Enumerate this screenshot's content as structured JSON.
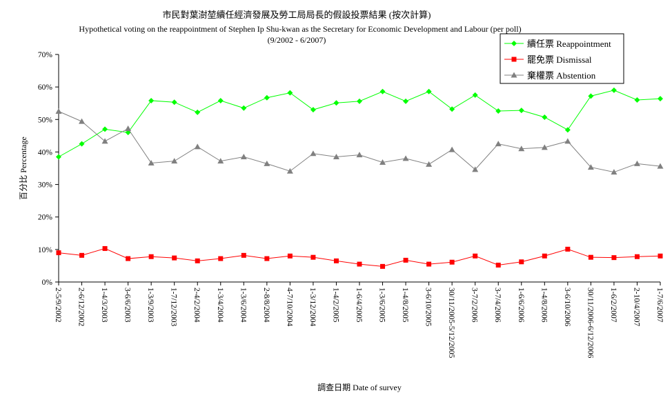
{
  "chart_data": {
    "type": "line",
    "title": "市民對葉澍堃續任經濟發展及勞工局局長的假設投票結果 (按次計算)",
    "subtitle": "Hypothetical voting on the reappointment of Stephen Ip Shu-kwan as the Secretary for Economic Development and Labour (per poll)",
    "period": "(9/2002 - 6/2007)",
    "xlabel": "調查日期 Date of survey",
    "ylabel": "百分比 Percentage",
    "ylim": [
      0,
      70
    ],
    "ytick_step": 10,
    "y_unit": "%",
    "grid": false,
    "legend_position": "top-right",
    "categories": [
      "2-5/9/2002",
      "2-6/12/2002",
      "1-4/3/2003",
      "3-6/6/2003",
      "1-3/9/2003",
      "1-7/12/2003",
      "2-4/2/2004",
      "1-3/4/2004",
      "1-3/6/2004",
      "2-8/8/2004",
      "4-7/10/2004",
      "1-3/12/2004",
      "1-4/2/2005",
      "1-6/4/2005",
      "1-3/6/2005",
      "1-4/8/2005",
      "3-6/10/2005",
      "30/11/2005-5/12/2005",
      "3-7/2/2006",
      "3-7/4/2006",
      "1-6/6/2006",
      "1-4/8/2006",
      "3-6/10/2006",
      "30/11/2006-6/12/2006",
      "1-6/2/2007",
      "2-10/4/2007",
      "1-7/6/2007"
    ],
    "series": [
      {
        "name": "續任票 Reappointment",
        "color": "#00ff00",
        "marker": "diamond",
        "values": [
          38.5,
          42.5,
          47,
          46,
          55.8,
          55.3,
          52.2,
          55.8,
          53.5,
          56.7,
          58.2,
          53,
          55.1,
          55.6,
          58.6,
          55.6,
          58.6,
          53.2,
          57.5,
          52.6,
          52.8,
          50.7,
          46.8,
          57.2,
          59,
          56,
          56.4
        ]
      },
      {
        "name": "罷免票 Dismissal",
        "color": "#ff0000",
        "marker": "square",
        "values": [
          9,
          8.2,
          10.3,
          7.2,
          7.8,
          7.4,
          6.5,
          7.2,
          8.2,
          7.2,
          8,
          7.6,
          6.5,
          5.5,
          4.8,
          6.7,
          5.5,
          6.1,
          8,
          5.2,
          6.2,
          8,
          10.1,
          7.6,
          7.5,
          7.8,
          8
        ]
      },
      {
        "name": "棄權票 Abstention",
        "color": "#808080",
        "marker": "triangle",
        "values": [
          52.5,
          49.4,
          43.3,
          47.2,
          36.6,
          37.2,
          41.6,
          37.2,
          38.5,
          36.4,
          34.1,
          39.5,
          38.5,
          39.1,
          36.8,
          38,
          36.2,
          40.7,
          34.6,
          42.5,
          41,
          41.4,
          43.3,
          35.3,
          33.8,
          36.4,
          35.6
        ]
      }
    ]
  }
}
